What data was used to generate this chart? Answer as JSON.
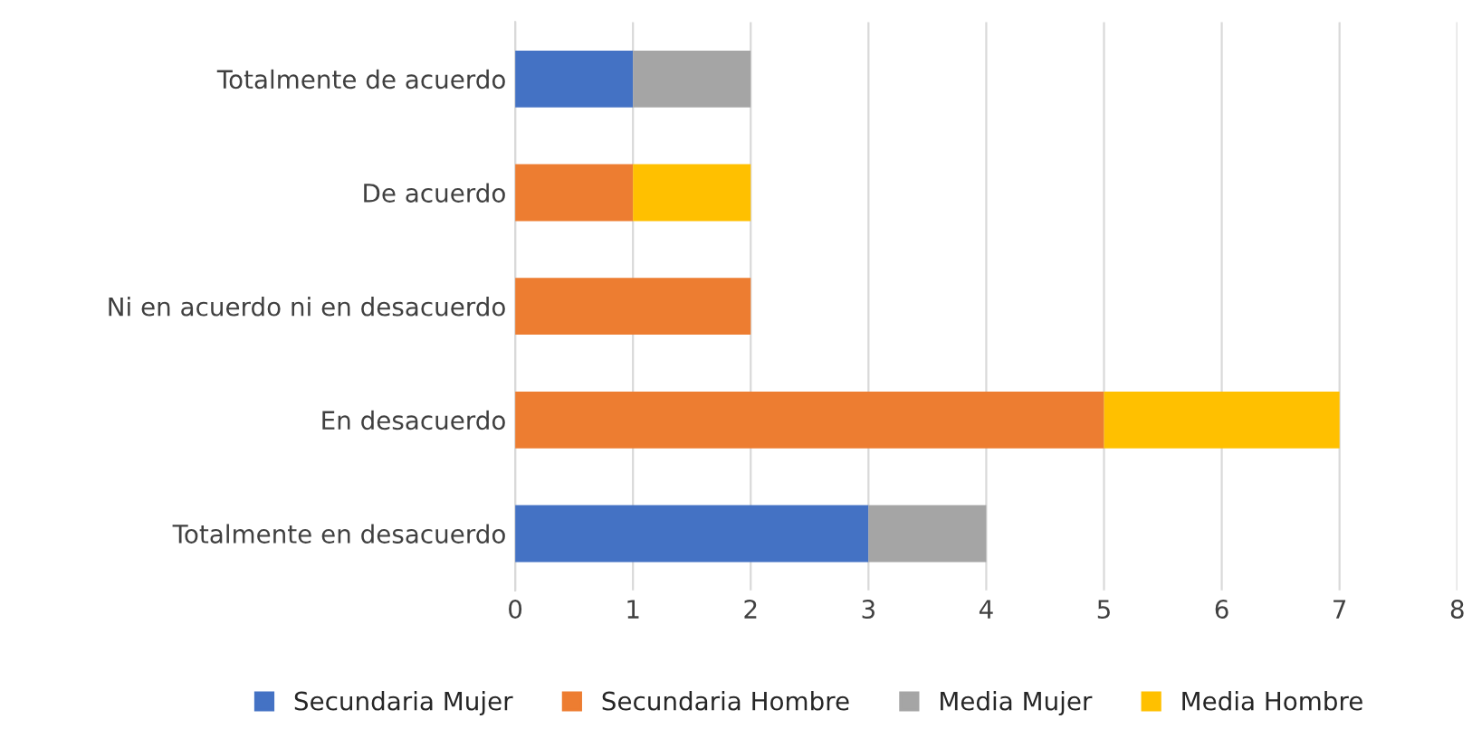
{
  "chart_data": {
    "type": "bar",
    "orientation": "horizontal",
    "stacked": true,
    "categories": [
      "Totalmente de acuerdo",
      "De acuerdo",
      "Ni en acuerdo ni en desacuerdo",
      "En desacuerdo",
      "Totalmente en desacuerdo"
    ],
    "series": [
      {
        "name": "Secundaria Mujer",
        "color": "#4472c4",
        "values": [
          1,
          0,
          0,
          0,
          3
        ]
      },
      {
        "name": "Secundaria Hombre",
        "color": "#ed7d31",
        "values": [
          0,
          1,
          2,
          5,
          0
        ]
      },
      {
        "name": "Media Mujer",
        "color": "#a5a5a5",
        "values": [
          1,
          0,
          0,
          0,
          1
        ]
      },
      {
        "name": "Media Hombre",
        "color": "#ffc000",
        "values": [
          0,
          1,
          0,
          2,
          0
        ]
      }
    ],
    "xlim": [
      0,
      8
    ],
    "xticks": [
      0,
      1,
      2,
      3,
      4,
      5,
      6,
      7,
      8
    ],
    "grid": "x",
    "legend": "bottom"
  }
}
